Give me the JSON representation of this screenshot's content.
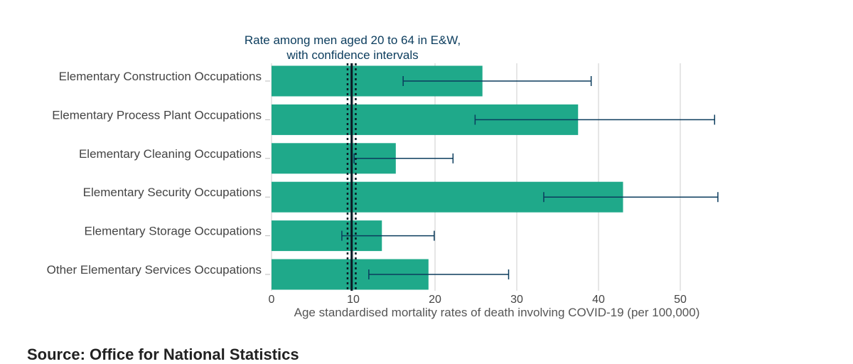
{
  "chart_data": {
    "type": "bar",
    "orientation": "horizontal",
    "categories": [
      "Elementary Construction Occupations",
      "Elementary Process Plant Occupations",
      "Elementary Cleaning Occupations",
      "Elementary Security Occupations",
      "Elementary Storage Occupations",
      "Other Elementary Services Occupations"
    ],
    "values": [
      25.8,
      37.5,
      15.2,
      43.0,
      13.5,
      19.2
    ],
    "error_low": [
      16.1,
      24.9,
      10.1,
      33.3,
      8.6,
      11.9
    ],
    "error_high": [
      39.1,
      54.2,
      22.2,
      54.6,
      19.9,
      29.0
    ],
    "bar_color": "#1fa98a",
    "error_color": "#0b3c5d",
    "reference": {
      "label_line1": "Rate among men aged 20 to 64 in E&W,",
      "label_line2": "with confidence intervals",
      "value": 9.8,
      "ci_low": 9.3,
      "ci_high": 10.3,
      "color": "#0b1a24"
    },
    "xlabel": "Age standardised mortality rates of death involving COVID-19 (per 100,000)",
    "xticks": [
      "0",
      "10",
      "20",
      "30",
      "40",
      "50"
    ],
    "xlim": [
      0,
      55
    ],
    "grid": true
  },
  "footer": {
    "source_text": "Source: Office for National Statistics"
  }
}
